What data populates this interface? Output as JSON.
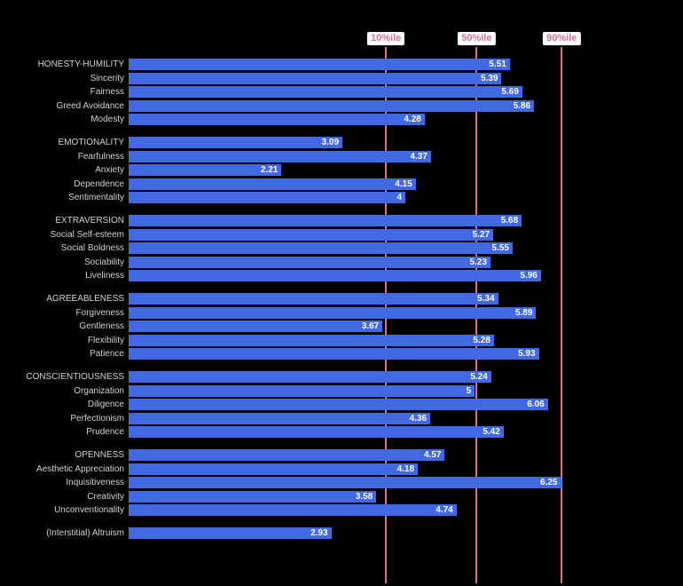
{
  "chart_data": {
    "type": "bar",
    "orientation": "horizontal",
    "title": "",
    "xlabel": "",
    "ylabel": "",
    "xlim": [
      0,
      7
    ],
    "grid": false,
    "legend": false,
    "groups": [
      {
        "name": "HONESTY-HUMILITY",
        "rows": [
          {
            "label": "HONESTY-HUMILITY",
            "value": 5.51,
            "display": "5.51"
          },
          {
            "label": "Sincerity",
            "value": 5.39,
            "display": "5.39"
          },
          {
            "label": "Fairness",
            "value": 5.69,
            "display": "5.69"
          },
          {
            "label": "Greed Avoidance",
            "value": 5.86,
            "display": "5.86"
          },
          {
            "label": "Modesty",
            "value": 4.28,
            "display": "4.28"
          }
        ]
      },
      {
        "name": "EMOTIONALITY",
        "rows": [
          {
            "label": "EMOTIONALITY",
            "value": 3.09,
            "display": "3.09"
          },
          {
            "label": "Fearfulness",
            "value": 4.37,
            "display": "4.37"
          },
          {
            "label": "Anxiety",
            "value": 2.21,
            "display": "2.21"
          },
          {
            "label": "Dependence",
            "value": 4.15,
            "display": "4.15"
          },
          {
            "label": "Sentimentality",
            "value": 4,
            "display": "4"
          }
        ]
      },
      {
        "name": "EXTRAVERSION",
        "rows": [
          {
            "label": "EXTRAVERSION",
            "value": 5.68,
            "display": "5.68"
          },
          {
            "label": "Social Self-esteem",
            "value": 5.27,
            "display": "5.27"
          },
          {
            "label": "Social Boldness",
            "value": 5.55,
            "display": "5.55"
          },
          {
            "label": "Sociability",
            "value": 5.23,
            "display": "5.23"
          },
          {
            "label": "Liveliness",
            "value": 5.96,
            "display": "5.96"
          }
        ]
      },
      {
        "name": "AGREEABLENESS",
        "rows": [
          {
            "label": "AGREEABLENESS",
            "value": 5.34,
            "display": "5.34"
          },
          {
            "label": "Forgiveness",
            "value": 5.89,
            "display": "5.89"
          },
          {
            "label": "Gentleness",
            "value": 3.67,
            "display": "3.67"
          },
          {
            "label": "Flexibility",
            "value": 5.28,
            "display": "5.28"
          },
          {
            "label": "Patience",
            "value": 5.93,
            "display": "5.93"
          }
        ]
      },
      {
        "name": "CONSCIENTIOUSNESS",
        "rows": [
          {
            "label": "CONSCIENTIOUSNESS",
            "value": 5.24,
            "display": "5.24"
          },
          {
            "label": "Organization",
            "value": 5,
            "display": "5"
          },
          {
            "label": "Diligence",
            "value": 6.06,
            "display": "6.06"
          },
          {
            "label": "Perfectionism",
            "value": 4.36,
            "display": "4.36"
          },
          {
            "label": "Prudence",
            "value": 5.42,
            "display": "5.42"
          }
        ]
      },
      {
        "name": "OPENNESS",
        "rows": [
          {
            "label": "OPENNESS",
            "value": 4.57,
            "display": "4.57"
          },
          {
            "label": "Aesthetic Appreciation",
            "value": 4.18,
            "display": "4.18"
          },
          {
            "label": "Inquisitiveness",
            "value": 6.25,
            "display": "6.25"
          },
          {
            "label": "Creativity",
            "value": 3.58,
            "display": "3.58"
          },
          {
            "label": "Unconventionality",
            "value": 4.74,
            "display": "4.74"
          }
        ]
      },
      {
        "name": "(Interstitial) Altruism",
        "rows": [
          {
            "label": "(Interstitial) Altruism",
            "value": 2.93,
            "display": "2.93"
          }
        ]
      }
    ],
    "percentiles": [
      {
        "label": "10%ile",
        "value": 3.72
      },
      {
        "label": "50%ile",
        "value": 5.03
      },
      {
        "label": "90%ile",
        "value": 6.26
      }
    ],
    "colors": {
      "background": "#000000",
      "bar": "#4169e1",
      "percentile": "#db7093",
      "label_text": "#d3d3d3",
      "value_text": "#ffffff"
    }
  }
}
